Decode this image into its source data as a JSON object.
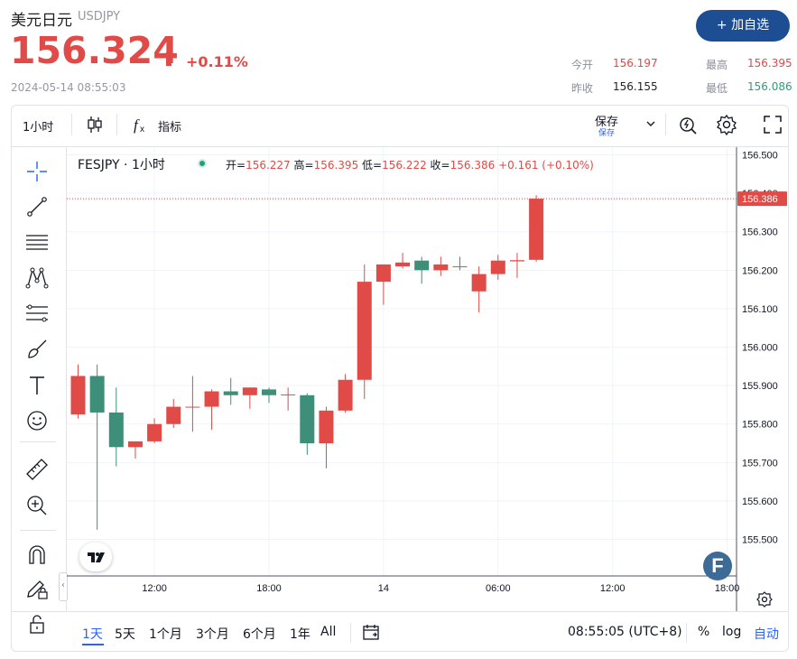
{
  "header": {
    "title": "美元日元",
    "code": "USDJPY",
    "price": "156.324",
    "change_pct": "+0.11%",
    "timestamp": "2024-05-14 08:55:03",
    "add_button": "+ 加自选",
    "stats": {
      "open_label": "今开",
      "open": "156.197",
      "high_label": "最高",
      "high": "156.395",
      "prev_close_label": "昨收",
      "prev_close": "156.155",
      "low_label": "最低",
      "low": "156.086"
    }
  },
  "toolbar": {
    "interval": "1小时",
    "indicators_label": "指标",
    "save_label": "保存",
    "save_sub": "保存"
  },
  "legend": {
    "symbol": "FESJPY · 1小时",
    "open_label": "开=",
    "open": "156.227",
    "high_label": "高=",
    "high": "156.395",
    "low_label": "低=",
    "low": "156.222",
    "close_label": "收=",
    "close": "156.386",
    "change": "+0.161 (+0.10%)"
  },
  "bottom_bar": {
    "timeframes": [
      "1天",
      "5天",
      "1个月",
      "3个月",
      "6个月",
      "1年",
      "All"
    ],
    "selected": "1天",
    "clock": "08:55:05 (UTC+8)",
    "percent_label": "%",
    "log_label": "log",
    "auto_label": "自动"
  },
  "colors": {
    "up": "#e04a47",
    "down": "#3d8f7a",
    "accent": "#2962ff",
    "brand_button": "#1d4e94"
  },
  "chart_data": {
    "type": "candlestick",
    "ylim": [
      155.405,
      156.52
    ],
    "yticks": [
      "156.500",
      "156.400",
      "156.300",
      "156.200",
      "156.100",
      "156.000",
      "155.900",
      "155.800",
      "155.700",
      "155.600",
      "155.500"
    ],
    "ytick_values": [
      156.5,
      156.4,
      156.3,
      156.2,
      156.1,
      156.0,
      155.9,
      155.8,
      155.7,
      155.6,
      155.5
    ],
    "xticks": [
      {
        "label": "12:00",
        "index": 4
      },
      {
        "label": "18:00",
        "index": 10
      },
      {
        "label": "14",
        "index": 16
      },
      {
        "label": "06:00",
        "index": 22
      },
      {
        "label": "12:00",
        "index": 28
      },
      {
        "label": "18:00",
        "index": 34
      }
    ],
    "last_price": 156.386,
    "last_price_label": "156.386",
    "candles": [
      {
        "o": 155.825,
        "h": 155.955,
        "l": 155.815,
        "c": 155.925
      },
      {
        "o": 155.925,
        "h": 155.955,
        "l": 155.525,
        "c": 155.83
      },
      {
        "o": 155.83,
        "h": 155.895,
        "l": 155.69,
        "c": 155.74
      },
      {
        "o": 155.74,
        "h": 155.755,
        "l": 155.71,
        "c": 155.755
      },
      {
        "o": 155.755,
        "h": 155.815,
        "l": 155.75,
        "c": 155.8
      },
      {
        "o": 155.8,
        "h": 155.865,
        "l": 155.79,
        "c": 155.845
      },
      {
        "o": 155.843,
        "h": 155.925,
        "l": 155.78,
        "c": 155.845
      },
      {
        "o": 155.845,
        "h": 155.89,
        "l": 155.785,
        "c": 155.885
      },
      {
        "o": 155.885,
        "h": 155.92,
        "l": 155.85,
        "c": 155.875
      },
      {
        "o": 155.875,
        "h": 155.895,
        "l": 155.84,
        "c": 155.895
      },
      {
        "o": 155.89,
        "h": 155.895,
        "l": 155.855,
        "c": 155.875
      },
      {
        "o": 155.875,
        "h": 155.895,
        "l": 155.835,
        "c": 155.877
      },
      {
        "o": 155.875,
        "h": 155.88,
        "l": 155.72,
        "c": 155.75
      },
      {
        "o": 155.75,
        "h": 155.845,
        "l": 155.685,
        "c": 155.835
      },
      {
        "o": 155.835,
        "h": 155.93,
        "l": 155.83,
        "c": 155.915
      },
      {
        "o": 155.915,
        "h": 156.215,
        "l": 155.865,
        "c": 156.17
      },
      {
        "o": 156.17,
        "h": 156.215,
        "l": 156.11,
        "c": 156.215
      },
      {
        "o": 156.21,
        "h": 156.245,
        "l": 156.205,
        "c": 156.22
      },
      {
        "o": 156.225,
        "h": 156.235,
        "l": 156.165,
        "c": 156.2
      },
      {
        "o": 156.2,
        "h": 156.235,
        "l": 156.185,
        "c": 156.215
      },
      {
        "o": 156.208,
        "h": 156.235,
        "l": 156.2,
        "c": 156.21
      },
      {
        "o": 156.145,
        "h": 156.21,
        "l": 156.09,
        "c": 156.19
      },
      {
        "o": 156.19,
        "h": 156.24,
        "l": 156.175,
        "c": 156.225
      },
      {
        "o": 156.223,
        "h": 156.245,
        "l": 156.18,
        "c": 156.226
      },
      {
        "o": 156.227,
        "h": 156.395,
        "l": 156.222,
        "c": 156.386
      }
    ]
  }
}
